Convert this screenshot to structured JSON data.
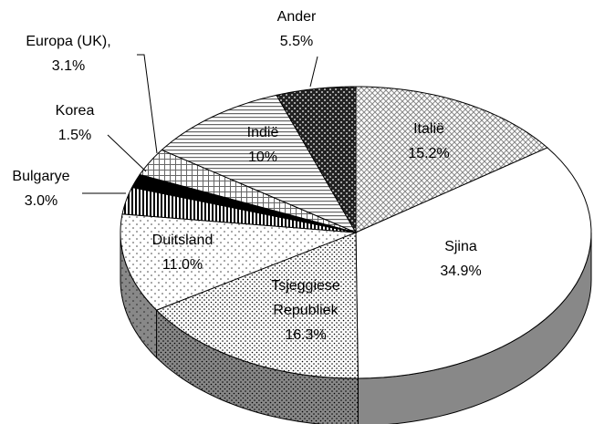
{
  "chart_data": {
    "type": "pie3d",
    "categories": [
      "Italië",
      "Sjina",
      "Tsjeggiese Republiek",
      "Duitsland",
      "Bulgarye",
      "Korea",
      "Europa (UK),",
      "Indië",
      "Ander"
    ],
    "values": [
      15.2,
      34.9,
      16.3,
      11.0,
      3.0,
      1.5,
      3.1,
      10,
      5.5
    ],
    "value_labels": [
      "15.2%",
      "34.9%",
      "16.3%",
      "11.0%",
      "3.0%",
      "1.5%",
      "3.1%",
      "10%",
      "5.5%"
    ]
  }
}
